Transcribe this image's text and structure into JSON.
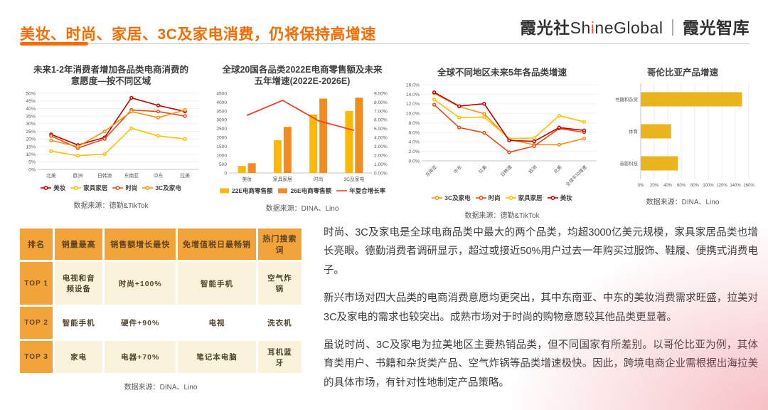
{
  "header": {
    "title": "美妆、时尚、家居、3C及家电消费，仍将保持高增速",
    "logo": {
      "cn": "霞光社",
      "en_pre": "Sh",
      "en_i": "i",
      "en_post": "neGlobal",
      "sep": "｜",
      "suffix": "霞光智库"
    }
  },
  "colors": {
    "accent": "#F76B01",
    "beauty_dark_red": "#C00000",
    "fashion_red": "#E84A17",
    "electronics_orange": "#F39313",
    "furniture_yellow": "#FFC000",
    "bar_22e": "#FFB900",
    "bar_26e": "#F28C1C",
    "cagr_line": "#EF4123",
    "colombia_gold": "#E9B41E",
    "table_header": "#F2A33A",
    "table_cream": "#FAF3DC"
  },
  "chart_data": [
    {
      "id": "intent-by-region",
      "type": "line",
      "title": "未来1-2年消费者增加各品类电商消费的\n意愿度—按不同区域",
      "categories": [
        "北美",
        "欧洲",
        "日韩澳",
        "东南亚",
        "中东",
        "拉美"
      ],
      "series": [
        {
          "name": "美妆",
          "color": "#C00000",
          "values": [
            23,
            16,
            21,
            47,
            42,
            38
          ]
        },
        {
          "name": "家具家居",
          "color": "#FFC000",
          "values": [
            12,
            9,
            10,
            27,
            22,
            20
          ]
        },
        {
          "name": "时尚",
          "color": "#E84A17",
          "values": [
            22,
            14,
            20,
            39,
            38,
            35
          ]
        },
        {
          "name": "3C及家电",
          "color": "#F39313",
          "values": [
            19,
            15,
            25,
            38,
            34,
            39
          ]
        }
      ],
      "ylim": [
        0,
        50
      ],
      "ytick": 5,
      "grid": true,
      "legend_position": "bottom",
      "source": "数据来源：德勤&TikTok"
    },
    {
      "id": "global-20-countries-retail",
      "type": "bar-line",
      "title": "全球20国各品类2022E电商零售额及未来\n五年增速(2022E-2026E)",
      "categories": [
        "美妆",
        "家具家居",
        "时尚",
        "3C及家电"
      ],
      "bar_series": [
        {
          "name": "22E电商零售额",
          "color": "#FFB900",
          "values": [
            400,
            1850,
            3300,
            3500
          ]
        },
        {
          "name": "26E电商零售额",
          "color": "#F28C1C",
          "values": [
            550,
            2600,
            4200,
            4250
          ]
        }
      ],
      "line_series": {
        "name": "年复合增长率",
        "color": "#EF4123",
        "values": [
          6.5,
          8.2,
          5.9,
          4.8
        ]
      },
      "left_ylim": [
        0,
        4500
      ],
      "left_ytick": 500,
      "right_ylim": [
        0,
        9
      ],
      "right_ytick": 1,
      "legend_position": "bottom",
      "source": "数据来源：DINA、Lino"
    },
    {
      "id": "region-5y-growth",
      "type": "line",
      "title": "全球不同地区未来5年各品类增速",
      "categories": [
        "东南亚",
        "中东",
        "拉美",
        "日韩澳",
        "欧洲",
        "北美",
        "全球平均增速"
      ],
      "series": [
        {
          "name": "3C及家电",
          "color": "#F39313",
          "values": [
            14.2,
            11.4,
            9.9,
            4.5,
            3.4,
            3.4,
            4.7
          ]
        },
        {
          "name": "时尚",
          "color": "#E84A17",
          "values": [
            11.8,
            7.0,
            5.9,
            1.8,
            3.1,
            6.8,
            6.0
          ]
        },
        {
          "name": "家具家居",
          "color": "#FFC000",
          "values": [
            12.9,
            9.1,
            9.2,
            4.7,
            4.8,
            9.5,
            8.2
          ]
        },
        {
          "name": "美妆",
          "color": "#C00000",
          "values": [
            14.4,
            11.5,
            12.0,
            4.3,
            4.1,
            7.0,
            6.4
          ]
        }
      ],
      "ylim": [
        0,
        16
      ],
      "ytick": 2,
      "ydec": 1,
      "grid": true,
      "rotated_labels": true,
      "legend_position": "bottom",
      "source": "数据来源：德勤&TikTok"
    },
    {
      "id": "colombia-product-growth",
      "type": "hbar",
      "title": "哥伦比亚产品增速",
      "categories": [
        "书籍和杂货",
        "体育",
        "音影科技"
      ],
      "values": [
        150,
        45,
        55
      ],
      "color": "#E9B41E",
      "xlim": [
        0,
        160
      ],
      "xtick": 20,
      "grid": true,
      "source": "数据来源：DINA、Lino"
    }
  ],
  "table": {
    "headers": [
      "排名",
      "销量最高",
      "销售额增长最快",
      "免增值税日最畅销",
      "热门搜索词"
    ],
    "rows": [
      {
        "rank": "TOP 1",
        "cells": [
          "电视和音频设备",
          "时尚+100%",
          "智能手机",
          "空气炸锅"
        ]
      },
      {
        "rank": "TOP 2",
        "cells": [
          "智能手机",
          "硬件+90%",
          "电视",
          "洗衣机"
        ]
      },
      {
        "rank": "TOP 3",
        "cells": [
          "家电",
          "电器+70%",
          "笔记本电脑",
          "耳机蓝牙"
        ]
      }
    ],
    "source": "数据来源：DINA、Lino"
  },
  "analysis": {
    "paragraphs": [
      "时尚、3C及家电是全球电商品类中最大的两个品类，均超3000亿美元规模，家具家居品类也增长亮眼。德勤消费者调研显示，超过或接近50%用户过去一年购买过服饰、鞋履、便携式消费电子。",
      "新兴市场对四大品类的电商消费意愿均更突出，其中东南亚、中东的美妆消费需求旺盛，拉美对3C及家电的需求也较突出。成熟市场对于时尚的购物意愿较其他品类更显著。",
      "虽说时尚、3C及家电为拉美地区主要热销品类，但不同国家有所差别。以哥伦比亚为例，其体育类用户、书籍和杂货类产品、空气炸锅等品类增速极快。因此，跨境电商企业需根据出海拉美的具体市场，有针对性地制定产品策略。"
    ]
  }
}
